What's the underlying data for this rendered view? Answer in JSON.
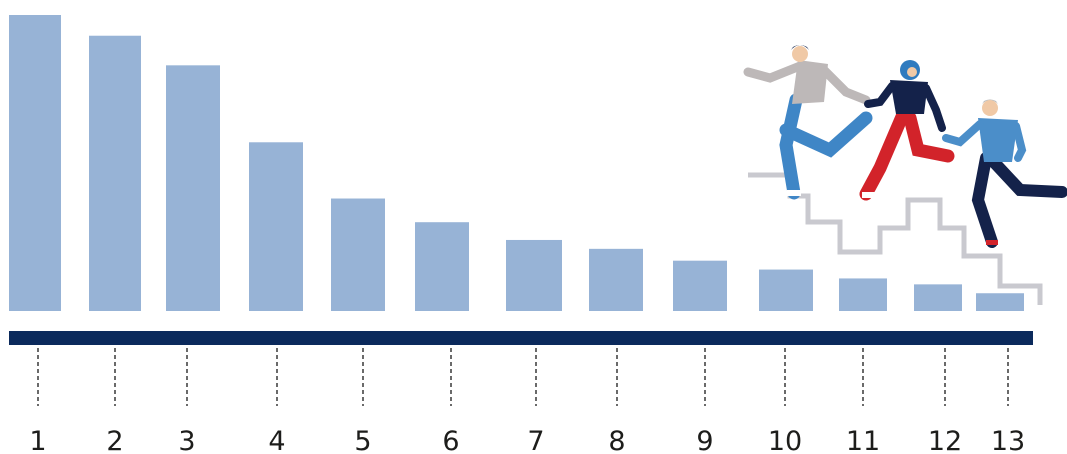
{
  "chart_data": {
    "type": "bar",
    "categories": [
      "1",
      "2",
      "3",
      "4",
      "5",
      "6",
      "7",
      "8",
      "9",
      "10",
      "11",
      "12",
      "13"
    ],
    "values": [
      100,
      93,
      83,
      57,
      38,
      30,
      24,
      21,
      17,
      14,
      11,
      9,
      6
    ],
    "title": "",
    "xlabel": "",
    "ylabel": "",
    "ylim": [
      0,
      100
    ],
    "grid": false,
    "legend": "none",
    "colors": {
      "bar": "#97b3d6",
      "axis": "#0b2a5c",
      "tick_line": "#2b2b2b",
      "text": "#1d1d1b"
    }
  },
  "illustration": {
    "description_icon": "family-running-up-stairs-illustration",
    "colors": {
      "stairs": "#c9c9cf",
      "jeans": "#3f86c6",
      "grey_top": "#bdb8b8",
      "navy": "#14224a",
      "red": "#d2232a",
      "blue_top": "#4b8ec9",
      "skin": "#f0c9a6",
      "hijab": "#2f7bbf",
      "dark_hair": "#1d2b4f",
      "grey_hair": "#b7b7b7"
    }
  }
}
